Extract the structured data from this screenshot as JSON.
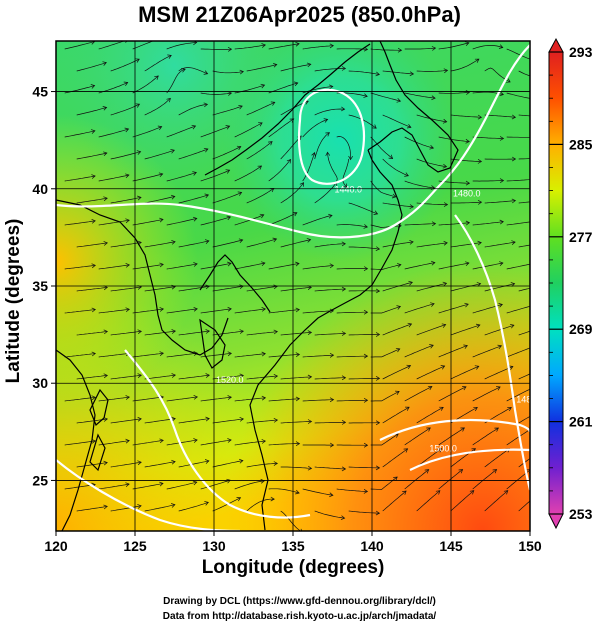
{
  "title": "MSM 21Z06Apr2025 (850.0hPa)",
  "credits": [
    "Drawing by DCL (https://www.gfd-dennou.org/library/dcl/)",
    "Data from http://database.rish.kyoto-u.ac.jp/arch/jmadata/"
  ],
  "chart_data": {
    "type": "heatmap",
    "title": "MSM 21Z06Apr2025 (850.0hPa)",
    "xlabel": "Longitude (degrees)",
    "ylabel": "Latitude  (degrees)",
    "xlim": [
      120,
      150
    ],
    "ylim": [
      22.4,
      47.6
    ],
    "x_ticks": [
      120,
      125,
      130,
      135,
      140,
      145,
      150
    ],
    "y_ticks": [
      25,
      30,
      35,
      40,
      45
    ],
    "grid": true,
    "colorbar": {
      "min": 253,
      "max": 293,
      "ticks": [
        253,
        261,
        269,
        277,
        285,
        293
      ],
      "colors": [
        "#e040b0",
        "#7020d0",
        "#1030e0",
        "#00a8ff",
        "#00e0c0",
        "#20d060",
        "#60e020",
        "#d8f000",
        "#ffb000",
        "#ff5000",
        "#e02020"
      ]
    },
    "contour_labels": [
      {
        "text": "1440.0",
        "lon": 138.5,
        "lat": 39.8
      },
      {
        "text": "1480.0",
        "lon": 146.0,
        "lat": 39.6
      },
      {
        "text": "1520.0",
        "lon": 131.0,
        "lat": 30.0
      },
      {
        "text": "1500.0",
        "lon": 144.5,
        "lat": 26.5
      },
      {
        "text": "1480.0",
        "lon": 150.0,
        "lat": 29.0
      }
    ],
    "field_notes": "Temperature shaded 253-293 K; geopotential height contours white; wind streamlines black"
  }
}
